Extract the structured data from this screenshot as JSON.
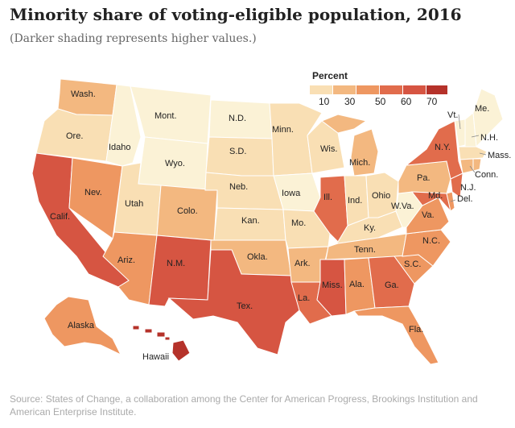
{
  "title": "Minority share of voting-eligible population, 2016",
  "subtitle": "(Darker shading represents higher values.)",
  "legend": {
    "title": "Percent",
    "ticks": [
      "10",
      "30",
      "50",
      "60",
      "70"
    ],
    "colors": [
      "#f9dfb4",
      "#f3b880",
      "#ee9761",
      "#e16c4c",
      "#d65542",
      "#b5322a"
    ]
  },
  "colors": {
    "lightest": "#fbf2d6",
    "light": "#f9dfb4",
    "lightmid": "#f3b880",
    "mid": "#ee9761",
    "dark": "#e16c4c",
    "darker": "#d65542",
    "darkest": "#b5322a",
    "border": "#ffffff"
  },
  "states": {
    "wash": "Wash.",
    "ore": "Ore.",
    "calif": "Calif.",
    "nev": "Nev.",
    "idaho": "Idaho",
    "mont": "Mont.",
    "wyo": "Wyo.",
    "utah": "Utah",
    "colo": "Colo.",
    "ariz": "Ariz.",
    "nm": "N.M.",
    "nd": "N.D.",
    "sd": "S.D.",
    "neb": "Neb.",
    "kan": "Kan.",
    "okla": "Okla.",
    "tex": "Tex.",
    "minn": "Minn.",
    "iowa": "Iowa",
    "mo": "Mo.",
    "ark": "Ark.",
    "la": "La.",
    "wis": "Wis.",
    "ill": "Ill.",
    "mich": "Mich.",
    "ind": "Ind.",
    "ohio": "Ohio",
    "ky": "Ky.",
    "tenn": "Tenn.",
    "miss": "Miss.",
    "ala": "Ala.",
    "ga": "Ga.",
    "fla": "Fla.",
    "sc": "S.C.",
    "nc": "N.C.",
    "va": "Va.",
    "wva": "W.Va.",
    "pa": "Pa.",
    "ny": "N.Y.",
    "vt": "Vt.",
    "me": "Me.",
    "nh": "N.H.",
    "mass": "Mass.",
    "conn": "Conn.",
    "nj": "N.J.",
    "del": "Del.",
    "md": "Md.",
    "alaska": "Alaska",
    "hawaii": "Hawaii"
  },
  "source": "Source: States of Change, a collaboration among the Center for American Progress, Brookings Institution and American Enterprise Institute."
}
